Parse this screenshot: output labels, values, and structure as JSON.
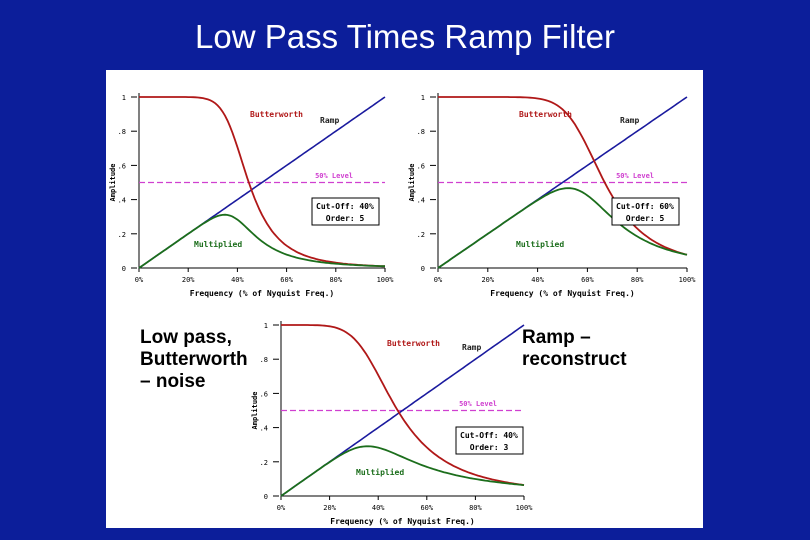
{
  "slide": {
    "title": "Low Pass Times Ramp Filter",
    "note_left": "Low pass,\nButterworth\n– noise",
    "note_right": "Ramp –\nreconstruct"
  },
  "colors": {
    "background": "#0c1e9a",
    "butterworth": "#b01818",
    "ramp": "#1a1a9e",
    "multiplied": "#1c6e1c",
    "level": "#d040d0"
  },
  "chart_data": [
    {
      "type": "line",
      "xlabel": "Frequency (% of Nyquist Freq.)",
      "ylabel": "Amplitude",
      "x_ticks": [
        "0%",
        "20%",
        "40%",
        "60%",
        "80%",
        "100%"
      ],
      "y_ticks": [
        "0",
        ".2",
        ".4",
        ".6",
        ".8",
        "1"
      ],
      "xlim": [
        0,
        100
      ],
      "ylim": [
        0,
        1
      ],
      "series": [
        {
          "name": "Butterworth",
          "cutoff": 40,
          "order": 5
        },
        {
          "name": "Ramp"
        },
        {
          "name": "Multiplied"
        }
      ],
      "level": {
        "label": "50% Level",
        "value": 0.5
      },
      "info": {
        "cutoff": "Cut-Off: 40%",
        "order": "Order: 5"
      }
    },
    {
      "type": "line",
      "xlabel": "Frequency (% of Nyquist Freq.)",
      "ylabel": "Amplitude",
      "x_ticks": [
        "0%",
        "20%",
        "40%",
        "60%",
        "80%",
        "100%"
      ],
      "y_ticks": [
        "0",
        ".2",
        ".4",
        ".6",
        ".8",
        "1"
      ],
      "xlim": [
        0,
        100
      ],
      "ylim": [
        0,
        1
      ],
      "series": [
        {
          "name": "Butterworth",
          "cutoff": 60,
          "order": 5
        },
        {
          "name": "Ramp"
        },
        {
          "name": "Multiplied"
        }
      ],
      "level": {
        "label": "50% Level",
        "value": 0.5
      },
      "info": {
        "cutoff": "Cut-Off: 60%",
        "order": "Order: 5"
      }
    },
    {
      "type": "line",
      "xlabel": "Frequency (% of Nyquist Freq.)",
      "ylabel": "Amplitude",
      "x_ticks": [
        "0%",
        "20%",
        "40%",
        "60%",
        "80%",
        "100%"
      ],
      "y_ticks": [
        "0",
        ".2",
        ".4",
        ".6",
        ".8",
        "1"
      ],
      "xlim": [
        0,
        100
      ],
      "ylim": [
        0,
        1
      ],
      "series": [
        {
          "name": "Butterworth",
          "cutoff": 40,
          "order": 3
        },
        {
          "name": "Ramp"
        },
        {
          "name": "Multiplied"
        }
      ],
      "level": {
        "label": "50% Level",
        "value": 0.5
      },
      "info": {
        "cutoff": "Cut-Off: 40%",
        "order": "Order: 3"
      }
    }
  ]
}
